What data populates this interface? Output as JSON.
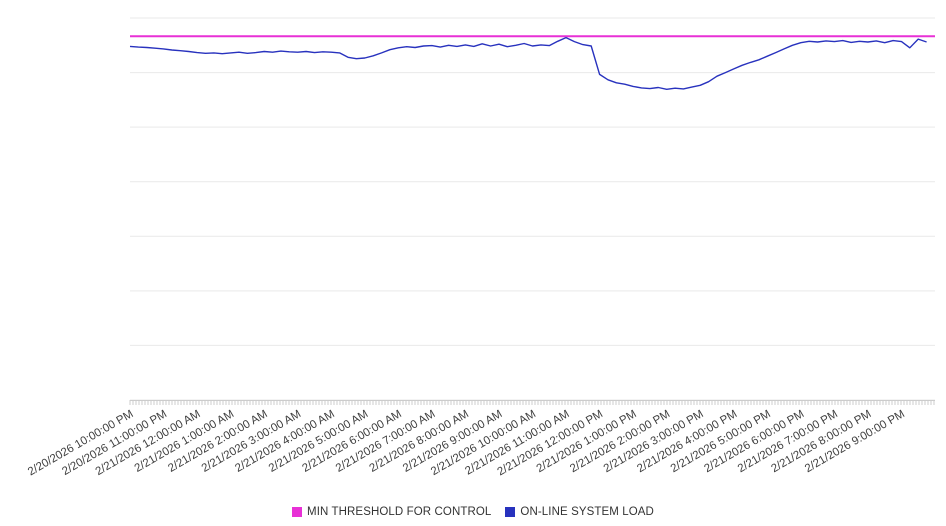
{
  "page": {
    "background": "#ffffff"
  },
  "legend": {
    "items": [
      {
        "label": "MIN THRESHOLD FOR CONTROL",
        "color": "#e830d6"
      },
      {
        "label": "ON-LINE SYSTEM LOAD",
        "color": "#2832be"
      }
    ]
  },
  "chart_data": {
    "type": "line",
    "title": "",
    "xlabel": "",
    "ylabel": "",
    "grid": true,
    "legend_position": "bottom",
    "ylim": [
      0,
      105
    ],
    "grid_step": 15,
    "y_tick_labels_visible": false,
    "x_tick_labels": [
      "2/20/2026 10:00:00 PM",
      "2/20/2026 11:00:00 PM",
      "2/21/2026 12:00:00 AM",
      "2/21/2026 1:00:00 AM",
      "2/21/2026 2:00:00 AM",
      "2/21/2026 3:00:00 AM",
      "2/21/2026 4:00:00 AM",
      "2/21/2026 5:00:00 AM",
      "2/21/2026 6:00:00 AM",
      "2/21/2026 7:00:00 AM",
      "2/21/2026 8:00:00 AM",
      "2/21/2026 9:00:00 AM",
      "2/21/2026 10:00:00 AM",
      "2/21/2026 11:00:00 AM",
      "2/21/2026 12:00:00 PM",
      "2/21/2026 1:00:00 PM",
      "2/21/2026 2:00:00 PM",
      "2/21/2026 3:00:00 PM",
      "2/21/2026 4:00:00 PM",
      "2/21/2026 5:00:00 PM",
      "2/21/2026 6:00:00 PM",
      "2/21/2026 7:00:00 PM",
      "2/21/2026 8:00:00 PM",
      "2/21/2026 9:00:00 PM"
    ],
    "x_minor_ticks": "dense minute ticks along axis",
    "series": [
      {
        "name": "MIN THRESHOLD FOR CONTROL",
        "type": "threshold-line",
        "color": "#e830d6",
        "value": 100
      },
      {
        "name": "ON-LINE SYSTEM LOAD",
        "type": "line",
        "color": "#2832be",
        "start_label": "2/20/2026 10:00:00 PM",
        "interval_minutes": 15,
        "values": [
          97.2,
          97.0,
          96.9,
          96.7,
          96.5,
          96.2,
          96.0,
          95.8,
          95.5,
          95.3,
          95.4,
          95.2,
          95.4,
          95.6,
          95.3,
          95.5,
          95.8,
          95.6,
          95.9,
          95.7,
          95.6,
          95.8,
          95.5,
          95.7,
          95.6,
          95.4,
          94.2,
          93.8,
          94.0,
          94.6,
          95.4,
          96.3,
          96.8,
          97.1,
          96.9,
          97.3,
          97.4,
          97.0,
          97.5,
          97.2,
          97.6,
          97.2,
          97.9,
          97.3,
          97.8,
          97.1,
          97.5,
          98.0,
          97.3,
          97.6,
          97.4,
          98.6,
          99.6,
          98.5,
          97.7,
          97.3,
          89.5,
          88.0,
          87.2,
          86.8,
          86.2,
          85.8,
          85.6,
          85.9,
          85.4,
          85.7,
          85.5,
          86.0,
          86.5,
          87.5,
          89.0,
          90.0,
          91.0,
          92.0,
          92.8,
          93.5,
          94.5,
          95.5,
          96.5,
          97.5,
          98.2,
          98.6,
          98.4,
          98.7,
          98.5,
          98.8,
          98.3,
          98.6,
          98.4,
          98.7,
          98.2,
          98.8,
          98.5,
          96.8,
          99.2,
          98.4
        ]
      }
    ]
  }
}
